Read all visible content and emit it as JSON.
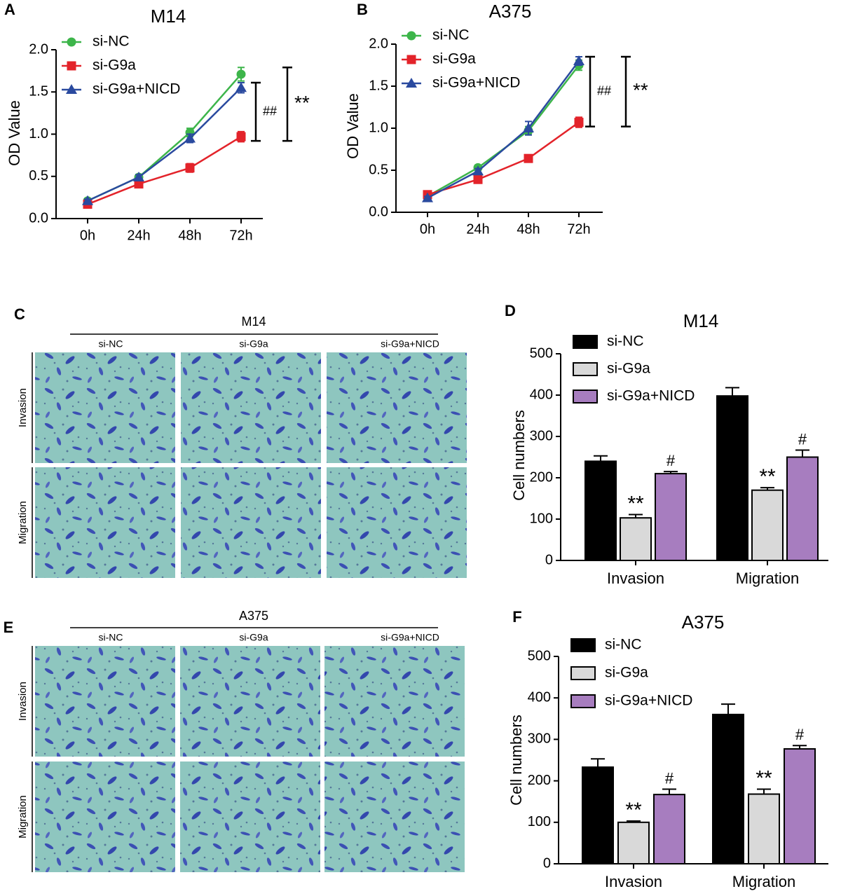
{
  "chart_data": [
    {
      "type": "line",
      "label": "A",
      "title": "M14",
      "y_label": "OD Value",
      "categories": [
        "0h",
        "24h",
        "48h",
        "72h"
      ],
      "series": [
        {
          "name": "si-NC",
          "color": "#3db54a",
          "marker": "circle",
          "values": [
            0.21,
            0.49,
            1.02,
            1.71
          ],
          "errors": [
            0.02,
            0.03,
            0.05,
            0.08
          ]
        },
        {
          "name": "si-G9a",
          "color": "#e3232a",
          "marker": "square",
          "values": [
            0.17,
            0.41,
            0.6,
            0.97
          ],
          "errors": [
            0.02,
            0.03,
            0.05,
            0.06
          ]
        },
        {
          "name": "si-G9a+NICD",
          "color": "#2a4a9f",
          "marker": "triangle",
          "values": [
            0.21,
            0.49,
            0.95,
            1.55
          ],
          "errors": [
            0.02,
            0.03,
            0.05,
            0.06
          ]
        }
      ],
      "ylim": [
        0,
        2
      ],
      "yticks": [
        {
          "value": 0,
          "label": "0.0"
        },
        0.5,
        {
          "value": 1,
          "label": "1.0"
        },
        1.5,
        {
          "value": 2,
          "label": "2.0"
        }
      ],
      "annotations": [
        "##",
        "**"
      ]
    },
    {
      "type": "line",
      "label": "B",
      "title": "A375",
      "y_label": "OD Value",
      "categories": [
        "0h",
        "24h",
        "48h",
        "72h"
      ],
      "series": [
        {
          "name": "si-NC",
          "color": "#3db54a",
          "marker": "circle",
          "values": [
            0.19,
            0.53,
            0.97,
            1.75
          ],
          "errors": [
            0.02,
            0.03,
            0.05,
            0.06
          ]
        },
        {
          "name": "si-G9a",
          "color": "#e3232a",
          "marker": "square",
          "values": [
            0.21,
            0.39,
            0.64,
            1.07
          ],
          "errors": [
            0.02,
            0.03,
            0.04,
            0.06
          ]
        },
        {
          "name": "si-G9a+NICD",
          "color": "#2a4a9f",
          "marker": "triangle",
          "values": [
            0.17,
            0.49,
            1.0,
            1.8
          ],
          "errors": [
            0.02,
            0.03,
            0.08,
            0.05
          ]
        }
      ],
      "ylim": [
        0,
        2
      ],
      "yticks": [
        {
          "value": 0,
          "label": "0.0"
        },
        0.5,
        {
          "value": 1,
          "label": "1.0"
        },
        1.5,
        {
          "value": 2,
          "label": "2.0"
        }
      ],
      "annotations": [
        "##",
        "**"
      ]
    },
    {
      "type": "bar",
      "label": "D",
      "title": "M14",
      "y_label": "Cell numbers",
      "categories": [
        "Invasion",
        "Migration"
      ],
      "series": [
        {
          "name": "si-NC",
          "color": "#000000",
          "values": [
            240,
            398
          ],
          "errors": [
            13,
            20
          ]
        },
        {
          "name": "si-G9a",
          "color": "#d9d9d9",
          "values": [
            103,
            170
          ],
          "errors": [
            8,
            6
          ],
          "significance": [
            "**",
            "**"
          ]
        },
        {
          "name": "si-G9a+NICD",
          "color": "#a77dbf",
          "values": [
            210,
            250
          ],
          "errors": [
            5,
            17
          ],
          "significance": [
            "#",
            "#"
          ]
        }
      ],
      "ylim": [
        0,
        500
      ],
      "yticks": [
        0,
        100,
        200,
        300,
        400,
        500
      ]
    },
    {
      "type": "bar",
      "label": "F",
      "title": "A375",
      "y_label": "Cell numbers",
      "categories": [
        "Invasion",
        "Migration"
      ],
      "series": [
        {
          "name": "si-NC",
          "color": "#000000",
          "values": [
            233,
            360
          ],
          "errors": [
            20,
            25
          ]
        },
        {
          "name": "si-G9a",
          "color": "#d9d9d9",
          "values": [
            100,
            168
          ],
          "errors": [
            3,
            12
          ],
          "significance": [
            "**",
            "**"
          ]
        },
        {
          "name": "si-G9a+NICD",
          "color": "#a77dbf",
          "values": [
            167,
            277
          ],
          "errors": [
            13,
            8
          ],
          "significance": [
            "#",
            "#"
          ]
        }
      ],
      "ylim": [
        0,
        500
      ],
      "yticks": [
        0,
        100,
        200,
        300,
        400,
        500
      ]
    }
  ],
  "image_panels": [
    {
      "label": "C",
      "title": "M14",
      "columns": [
        "si-NC",
        "si-G9a",
        "si-G9a+NICD"
      ],
      "rows": [
        "Invasion",
        "Migration"
      ]
    },
    {
      "label": "E",
      "title": "A375",
      "columns": [
        "si-NC",
        "si-G9a",
        "si-G9a+NICD"
      ],
      "rows": [
        "Invasion",
        "Migration"
      ]
    }
  ]
}
